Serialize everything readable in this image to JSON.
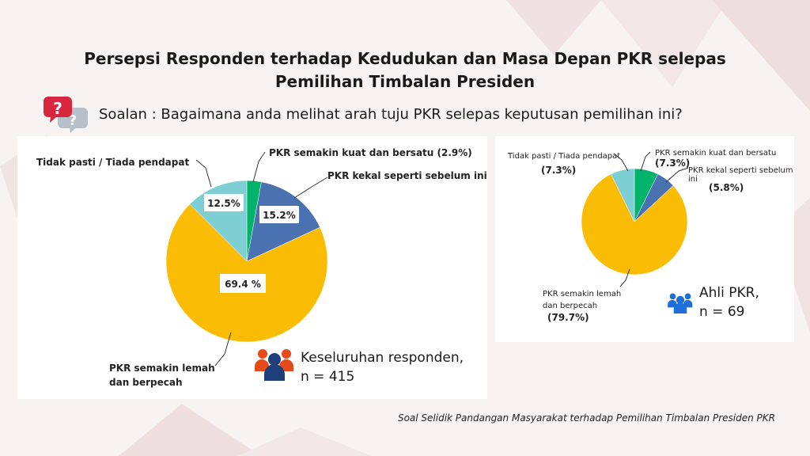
{
  "title_line1": "Persepsi Responden terhadap Kedudukan dan Masa Depan PKR selepas",
  "title_line2": "Pemilihan Timbalan Presiden",
  "question": "Soalan : Bagaimana anda melihat arah tuju PKR selepas keputusan pemilihan ini?",
  "question_icon": "question-bubbles-icon",
  "source": "Soal Selidik Pandangan Masyarakat terhadap Pemilihan Timbalan Presiden PKR",
  "colors": {
    "green": "#00b36b",
    "blue": "#4a72b0",
    "yellow": "#fbbc05",
    "teal": "#7ecfd4",
    "legend_red": "#e64a19",
    "legend_navy": "#1f3f7a",
    "legend_blue": "#1e6fd9"
  },
  "chart_data": [
    {
      "type": "pie",
      "respondents_label": "Keseluruhan responden,",
      "respondents_n": "n = 415",
      "legend_icon": "people-group-icon",
      "slices": [
        {
          "label": "PKR semakin kuat dan bersatu",
          "value": 2.9,
          "value_text": "(2.9%)",
          "color": "#00b36b"
        },
        {
          "label": "PKR kekal seperti sebelum ini",
          "value": 15.2,
          "value_text": "15.2%",
          "color": "#4a72b0"
        },
        {
          "label_lines": [
            "PKR semakin lemah",
            "dan berpecah"
          ],
          "value": 69.4,
          "value_text": "69.4 %",
          "color": "#fbbc05"
        },
        {
          "label": "Tidak pasti / Tiada pendapat",
          "value": 12.5,
          "value_text": "12.5%",
          "color": "#7ecfd4"
        }
      ]
    },
    {
      "type": "pie",
      "respondents_label": "Ahli PKR,",
      "respondents_n": "n = 69",
      "legend_icon": "people-group-icon",
      "slices": [
        {
          "label": "PKR semakin kuat dan bersatu",
          "value": 7.3,
          "value_text": "(7.3%)",
          "color": "#00b36b"
        },
        {
          "label": "PKR kekal seperti sebelum ini",
          "value": 5.8,
          "value_text": "(5.8%)",
          "color": "#4a72b0"
        },
        {
          "label_lines": [
            "PKR semakin lemah",
            "dan berpecah"
          ],
          "value": 79.7,
          "value_text": "(79.7%)",
          "color": "#fbbc05"
        },
        {
          "label": "Tidak pasti / Tiada pendapat",
          "value": 7.3,
          "value_text": "(7.3%)",
          "color": "#7ecfd4"
        }
      ]
    }
  ]
}
